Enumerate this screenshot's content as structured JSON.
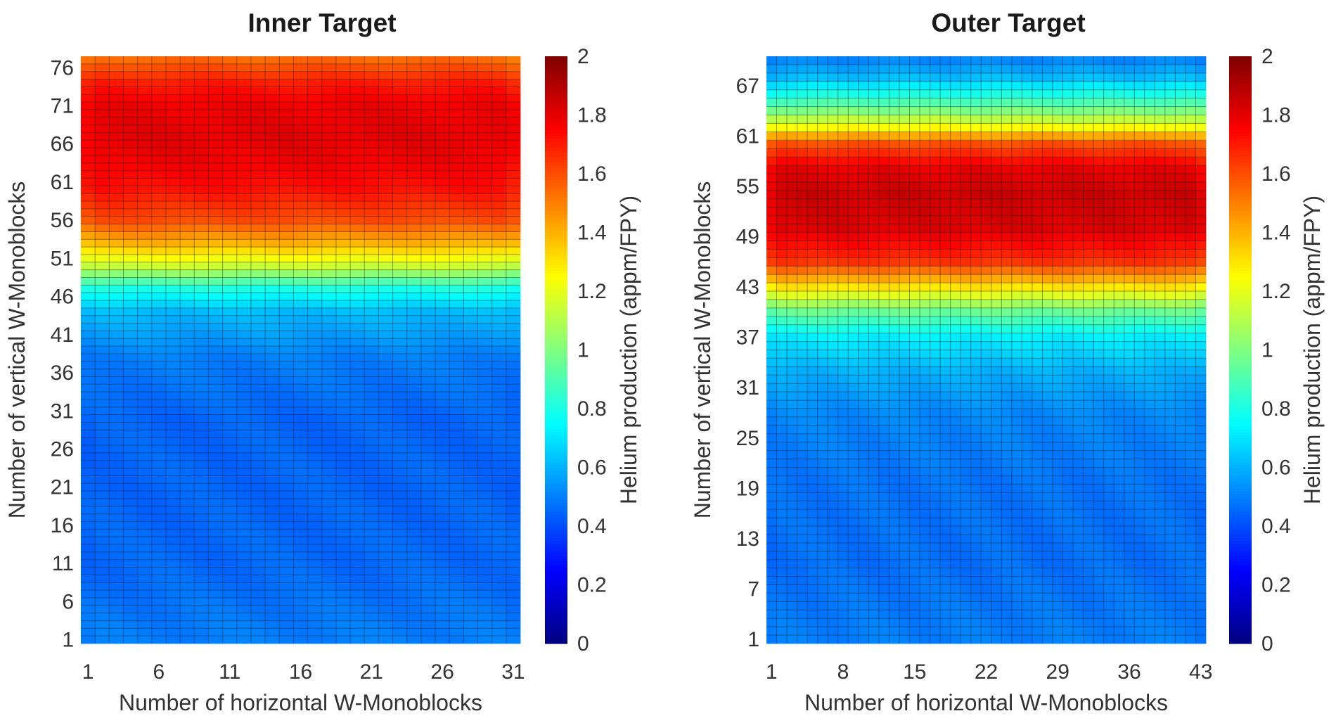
{
  "chart_data": [
    {
      "type": "heatmap",
      "title": "Inner Target",
      "xlabel": "Number of horizontal W-Monoblocks",
      "ylabel": "Number of vertical W-Monoblocks",
      "colorbar_label": "Helium production (appm/FPY)",
      "colormap": "jet",
      "clim": [
        0,
        2
      ],
      "x_range": [
        1,
        31
      ],
      "y_range": [
        1,
        77
      ],
      "x_ticks": [
        "1",
        "6",
        "11",
        "16",
        "21",
        "26",
        "31"
      ],
      "y_ticks": [
        "1",
        "6",
        "11",
        "16",
        "21",
        "26",
        "31",
        "36",
        "41",
        "46",
        "51",
        "56",
        "61",
        "66",
        "71",
        "76"
      ],
      "colorbar_ticks": [
        "0",
        "0.2",
        "0.4",
        "0.6",
        "0.8",
        "1",
        "1.2",
        "1.4",
        "1.6",
        "1.8",
        "2"
      ],
      "profile_y": [
        1,
        10,
        20,
        30,
        38,
        44,
        47,
        50,
        53,
        56,
        60,
        64,
        67,
        71,
        74,
        77
      ],
      "profile_value": [
        0.5,
        0.46,
        0.45,
        0.45,
        0.5,
        0.62,
        0.8,
        1.15,
        1.4,
        1.6,
        1.72,
        1.78,
        1.8,
        1.78,
        1.7,
        1.55
      ]
    },
    {
      "type": "heatmap",
      "title": "Outer Target",
      "xlabel": "Number of horizontal W-Monoblocks",
      "ylabel": "Number of vertical W-Monoblocks",
      "colorbar_label": "Helium production (appm/FPY)",
      "colormap": "jet",
      "clim": [
        0,
        2
      ],
      "x_range": [
        1,
        43
      ],
      "y_range": [
        1,
        70
      ],
      "x_ticks": [
        "1",
        "8",
        "15",
        "22",
        "29",
        "36",
        "43"
      ],
      "y_ticks": [
        "1",
        "7",
        "13",
        "19",
        "25",
        "31",
        "37",
        "43",
        "49",
        "55",
        "61",
        "67"
      ],
      "colorbar_ticks": [
        "0",
        "0.2",
        "0.4",
        "0.6",
        "0.8",
        "1",
        "1.2",
        "1.4",
        "1.6",
        "1.8",
        "2"
      ],
      "profile_y": [
        1,
        10,
        20,
        28,
        33,
        37,
        40,
        43,
        46,
        50,
        54,
        57,
        60,
        62,
        64,
        66,
        68,
        70
      ],
      "profile_value": [
        0.5,
        0.47,
        0.48,
        0.52,
        0.6,
        0.72,
        0.95,
        1.3,
        1.65,
        1.82,
        1.85,
        1.8,
        1.6,
        1.25,
        1.0,
        0.8,
        0.62,
        0.52
      ]
    }
  ]
}
